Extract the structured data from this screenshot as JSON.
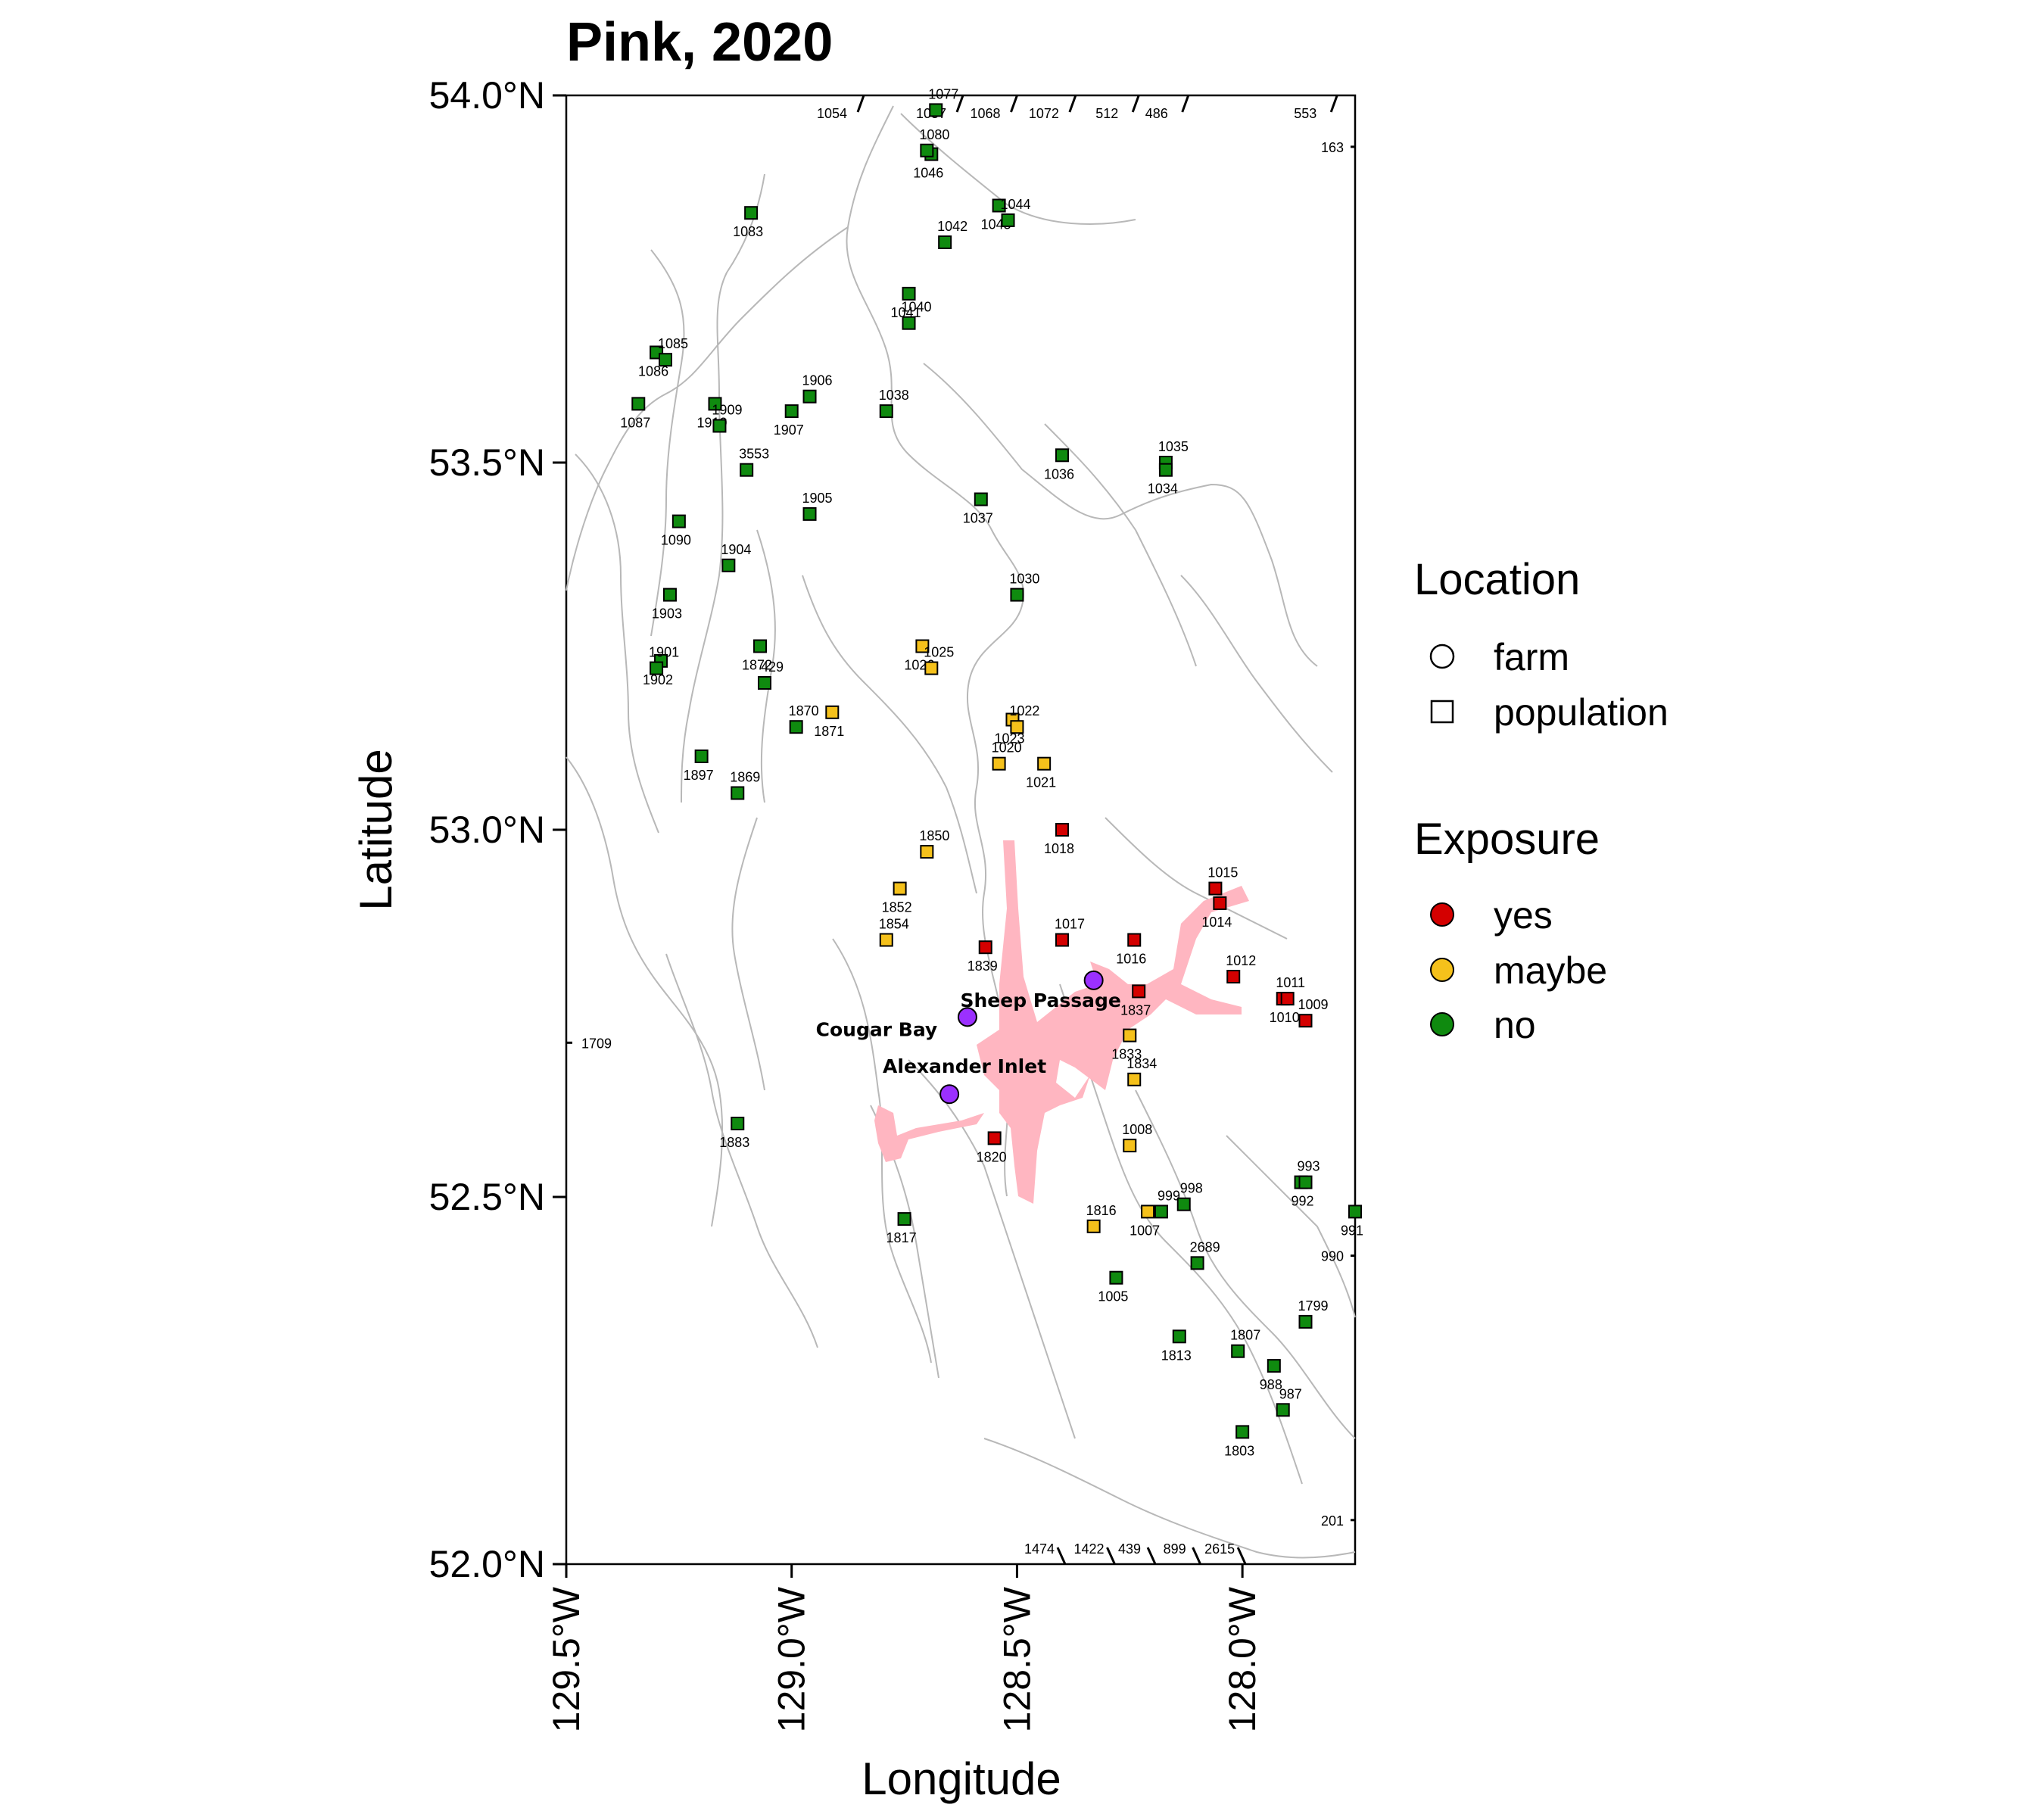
{
  "chart_data": {
    "type": "scatter",
    "title": "Pink, 2020",
    "xlabel": "Longitude",
    "ylabel": "Latitude",
    "xlim": [
      -129.5,
      -127.75
    ],
    "ylim": [
      52.0,
      54.0
    ],
    "x_ticks": [
      {
        "value": -129.5,
        "label": "129.5°W"
      },
      {
        "value": -129.0,
        "label": "129.0°W"
      },
      {
        "value": -128.5,
        "label": "128.5°W"
      },
      {
        "value": -128.0,
        "label": "128.0°W"
      }
    ],
    "y_ticks": [
      {
        "value": 52.0,
        "label": "52.0°N"
      },
      {
        "value": 52.5,
        "label": "52.5°N"
      },
      {
        "value": 53.0,
        "label": "53.0°N"
      },
      {
        "value": 53.5,
        "label": "53.5°N"
      },
      {
        "value": 54.0,
        "label": "54.0°N"
      }
    ],
    "exposure_colors": {
      "yes": "#d40000",
      "maybe": "#f5c11b",
      "no": "#0f8a0f"
    },
    "farm_color": "#9b30ff",
    "migration_route_color": "#ffb6c1",
    "legend": {
      "placement": "right",
      "location_title": "Location",
      "location_items": [
        {
          "shape": "circle",
          "label": "farm"
        },
        {
          "shape": "square",
          "label": "population"
        }
      ],
      "exposure_title": "Exposure",
      "exposure_items": [
        {
          "key": "yes",
          "label": "yes"
        },
        {
          "key": "maybe",
          "label": "maybe"
        },
        {
          "key": "no",
          "label": "no"
        }
      ]
    },
    "farms": [
      {
        "name": "Sheep Passage",
        "lon": -128.33,
        "lat": 52.795
      },
      {
        "name": "Cougar Bay",
        "lon": -128.61,
        "lat": 52.745
      },
      {
        "name": "Alexander Inlet",
        "lon": -128.65,
        "lat": 52.64
      }
    ],
    "populations": [
      {
        "id": "1077",
        "lon": -128.68,
        "lat": 53.98,
        "exposure": "no"
      },
      {
        "id": "1046",
        "lon": -128.69,
        "lat": 53.92,
        "exposure": "no"
      },
      {
        "id": "1080",
        "lon": -128.7,
        "lat": 53.925,
        "exposure": "no"
      },
      {
        "id": "1045",
        "lon": -128.54,
        "lat": 53.85,
        "exposure": "no"
      },
      {
        "id": "1044",
        "lon": -128.52,
        "lat": 53.83,
        "exposure": "no"
      },
      {
        "id": "1083",
        "lon": -129.09,
        "lat": 53.84,
        "exposure": "no"
      },
      {
        "id": "1042",
        "lon": -128.66,
        "lat": 53.8,
        "exposure": "no"
      },
      {
        "id": "1041",
        "lon": -128.74,
        "lat": 53.73,
        "exposure": "no"
      },
      {
        "id": "1040",
        "lon": -128.74,
        "lat": 53.69,
        "exposure": "no"
      },
      {
        "id": "1086",
        "lon": -129.3,
        "lat": 53.65,
        "exposure": "no"
      },
      {
        "id": "1085",
        "lon": -129.28,
        "lat": 53.64,
        "exposure": "no"
      },
      {
        "id": "1910",
        "lon": -129.17,
        "lat": 53.58,
        "exposure": "no"
      },
      {
        "id": "1909",
        "lon": -129.16,
        "lat": 53.55,
        "exposure": "no"
      },
      {
        "id": "1087",
        "lon": -129.34,
        "lat": 53.58,
        "exposure": "no"
      },
      {
        "id": "1906",
        "lon": -128.96,
        "lat": 53.59,
        "exposure": "no"
      },
      {
        "id": "1907",
        "lon": -129.0,
        "lat": 53.57,
        "exposure": "no"
      },
      {
        "id": "1038",
        "lon": -128.79,
        "lat": 53.57,
        "exposure": "no"
      },
      {
        "id": "1036",
        "lon": -128.4,
        "lat": 53.51,
        "exposure": "no"
      },
      {
        "id": "1035",
        "lon": -128.17,
        "lat": 53.5,
        "exposure": "no"
      },
      {
        "id": "1034",
        "lon": -128.17,
        "lat": 53.49,
        "exposure": "no"
      },
      {
        "id": "3553",
        "lon": -129.1,
        "lat": 53.49,
        "exposure": "no"
      },
      {
        "id": "1037",
        "lon": -128.58,
        "lat": 53.45,
        "exposure": "no"
      },
      {
        "id": "1905",
        "lon": -128.96,
        "lat": 53.43,
        "exposure": "no"
      },
      {
        "id": "1090",
        "lon": -129.25,
        "lat": 53.42,
        "exposure": "no"
      },
      {
        "id": "1904",
        "lon": -129.14,
        "lat": 53.36,
        "exposure": "no"
      },
      {
        "id": "1903",
        "lon": -129.27,
        "lat": 53.32,
        "exposure": "no"
      },
      {
        "id": "1030",
        "lon": -128.5,
        "lat": 53.32,
        "exposure": "no"
      },
      {
        "id": "1872",
        "lon": -129.07,
        "lat": 53.25,
        "exposure": "no"
      },
      {
        "id": "429",
        "lon": -129.06,
        "lat": 53.2,
        "exposure": "no"
      },
      {
        "id": "1902",
        "lon": -129.29,
        "lat": 53.23,
        "exposure": "no"
      },
      {
        "id": "1901",
        "lon": -129.3,
        "lat": 53.22,
        "exposure": "no"
      },
      {
        "id": "1026",
        "lon": -128.71,
        "lat": 53.25,
        "exposure": "maybe"
      },
      {
        "id": "1025",
        "lon": -128.69,
        "lat": 53.22,
        "exposure": "maybe"
      },
      {
        "id": "1871",
        "lon": -128.91,
        "lat": 53.16,
        "exposure": "maybe"
      },
      {
        "id": "1870",
        "lon": -128.99,
        "lat": 53.14,
        "exposure": "no"
      },
      {
        "id": "1023",
        "lon": -128.51,
        "lat": 53.15,
        "exposure": "maybe"
      },
      {
        "id": "1022",
        "lon": -128.5,
        "lat": 53.14,
        "exposure": "maybe"
      },
      {
        "id": "1897",
        "lon": -129.2,
        "lat": 53.1,
        "exposure": "no"
      },
      {
        "id": "1020",
        "lon": -128.54,
        "lat": 53.09,
        "exposure": "maybe"
      },
      {
        "id": "1021",
        "lon": -128.44,
        "lat": 53.09,
        "exposure": "maybe"
      },
      {
        "id": "1869",
        "lon": -129.12,
        "lat": 53.05,
        "exposure": "no"
      },
      {
        "id": "1018",
        "lon": -128.4,
        "lat": 53.0,
        "exposure": "yes"
      },
      {
        "id": "1850",
        "lon": -128.7,
        "lat": 52.97,
        "exposure": "maybe"
      },
      {
        "id": "1852",
        "lon": -128.76,
        "lat": 52.92,
        "exposure": "maybe"
      },
      {
        "id": "1015",
        "lon": -128.06,
        "lat": 52.92,
        "exposure": "yes"
      },
      {
        "id": "1014",
        "lon": -128.05,
        "lat": 52.9,
        "exposure": "yes"
      },
      {
        "id": "1854",
        "lon": -128.79,
        "lat": 52.85,
        "exposure": "maybe"
      },
      {
        "id": "1839",
        "lon": -128.57,
        "lat": 52.84,
        "exposure": "yes"
      },
      {
        "id": "1017",
        "lon": -128.4,
        "lat": 52.85,
        "exposure": "yes"
      },
      {
        "id": "1016",
        "lon": -128.24,
        "lat": 52.85,
        "exposure": "yes"
      },
      {
        "id": "1012",
        "lon": -128.02,
        "lat": 52.8,
        "exposure": "yes"
      },
      {
        "id": "1837",
        "lon": -128.23,
        "lat": 52.78,
        "exposure": "yes"
      },
      {
        "id": "1011",
        "lon": -127.91,
        "lat": 52.77,
        "exposure": "yes"
      },
      {
        "id": "1010",
        "lon": -127.9,
        "lat": 52.77,
        "exposure": "yes"
      },
      {
        "id": "1009",
        "lon": -127.86,
        "lat": 52.74,
        "exposure": "yes"
      },
      {
        "id": "1833",
        "lon": -128.25,
        "lat": 52.72,
        "exposure": "maybe"
      },
      {
        "id": "1834",
        "lon": -128.24,
        "lat": 52.66,
        "exposure": "maybe"
      },
      {
        "id": "1820",
        "lon": -128.55,
        "lat": 52.58,
        "exposure": "yes"
      },
      {
        "id": "1008",
        "lon": -128.25,
        "lat": 52.57,
        "exposure": "maybe"
      },
      {
        "id": "1883",
        "lon": -129.12,
        "lat": 52.6,
        "exposure": "no"
      },
      {
        "id": "993",
        "lon": -127.87,
        "lat": 52.52,
        "exposure": "no"
      },
      {
        "id": "992",
        "lon": -127.86,
        "lat": 52.52,
        "exposure": "no"
      },
      {
        "id": "998",
        "lon": -128.13,
        "lat": 52.49,
        "exposure": "no"
      },
      {
        "id": "1007",
        "lon": -128.21,
        "lat": 52.48,
        "exposure": "maybe"
      },
      {
        "id": "999",
        "lon": -128.18,
        "lat": 52.48,
        "exposure": "no"
      },
      {
        "id": "1817",
        "lon": -128.75,
        "lat": 52.47,
        "exposure": "no"
      },
      {
        "id": "1816",
        "lon": -128.33,
        "lat": 52.46,
        "exposure": "maybe"
      },
      {
        "id": "991",
        "lon": -127.75,
        "lat": 52.48,
        "exposure": "no"
      },
      {
        "id": "2689",
        "lon": -128.1,
        "lat": 52.41,
        "exposure": "no"
      },
      {
        "id": "1005",
        "lon": -128.28,
        "lat": 52.39,
        "exposure": "no"
      },
      {
        "id": "1799",
        "lon": -127.86,
        "lat": 52.33,
        "exposure": "no"
      },
      {
        "id": "1813",
        "lon": -128.14,
        "lat": 52.31,
        "exposure": "no"
      },
      {
        "id": "1807",
        "lon": -128.01,
        "lat": 52.29,
        "exposure": "no"
      },
      {
        "id": "988",
        "lon": -127.93,
        "lat": 52.27,
        "exposure": "no"
      },
      {
        "id": "987",
        "lon": -127.91,
        "lat": 52.21,
        "exposure": "no"
      },
      {
        "id": "1803",
        "lon": -128.0,
        "lat": 52.18,
        "exposure": "no"
      }
    ],
    "edge_labels": [
      {
        "text": "1054",
        "edge": "top",
        "lon": -128.85
      },
      {
        "text": "1057",
        "edge": "top",
        "lon": -128.63
      },
      {
        "text": "1068",
        "edge": "top",
        "lon": -128.51
      },
      {
        "text": "1072",
        "edge": "top",
        "lon": -128.38
      },
      {
        "text": "512",
        "edge": "top",
        "lon": -128.24
      },
      {
        "text": "486",
        "edge": "top",
        "lon": -128.13
      },
      {
        "text": "553",
        "edge": "top",
        "lon": -127.8
      },
      {
        "text": "163",
        "edge": "right",
        "lat": 53.93
      },
      {
        "text": "1709",
        "edge": "left",
        "lat": 52.71
      },
      {
        "text": "990",
        "edge": "right",
        "lat": 52.42
      },
      {
        "text": "201",
        "edge": "right",
        "lat": 52.06
      },
      {
        "text": "1474",
        "edge": "bottom",
        "lon": -128.4
      },
      {
        "text": "1422",
        "edge": "bottom",
        "lon": -128.29
      },
      {
        "text": "439",
        "edge": "bottom",
        "lon": -128.2
      },
      {
        "text": "899",
        "edge": "bottom",
        "lon": -128.1
      },
      {
        "text": "2615",
        "edge": "bottom",
        "lon": -128.0
      }
    ]
  }
}
